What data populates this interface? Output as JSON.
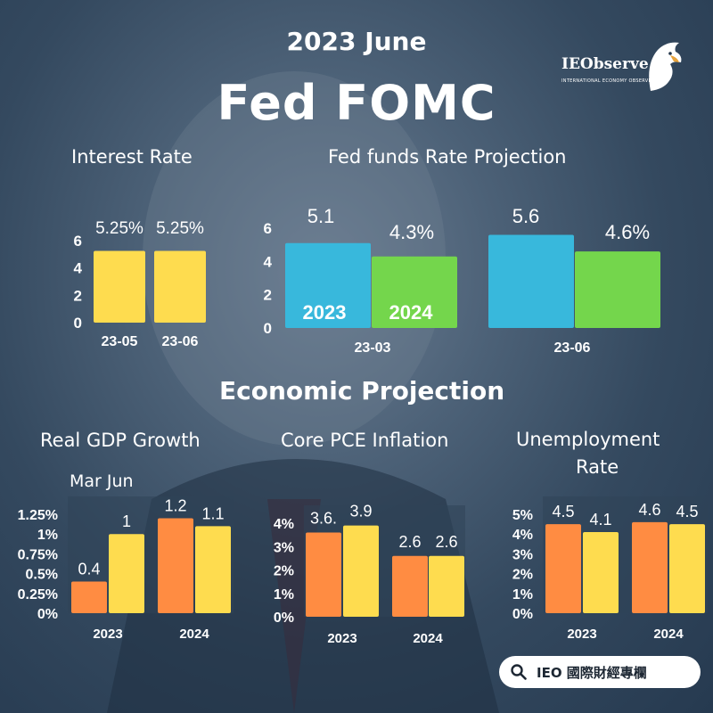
{
  "header": {
    "subtitle": "2023 June",
    "title": "Fed FOMC"
  },
  "logo": {
    "name": "IEObserve",
    "tagline": "INTERNATIONAL ECONOMY OBSERVE",
    "icon": "eagle-icon"
  },
  "sections": {
    "interest_rate": "Interest Rate",
    "fed_funds": "Fed funds Rate Projection",
    "economic": "Economic Projection",
    "gdp": "Real GDP Growth",
    "gdp_note": "Mar Jun",
    "pce": "Core PCE Inflation",
    "unemployment_line1": "Unemployment",
    "unemployment_line2": "Rate"
  },
  "colors": {
    "yellow": "#fedc4f",
    "orange": "#ff8c42",
    "blue": "#38b8dc",
    "green": "#74d64c",
    "text": "#ffffff",
    "panel": "#2f4358"
  },
  "chart_data": [
    {
      "id": "interest",
      "type": "bar",
      "title": "Interest Rate",
      "categories": [
        "23-05",
        "23-06"
      ],
      "values": [
        5.25,
        5.25
      ],
      "data_labels": [
        "5.25%",
        "5.25%"
      ],
      "yticks": [
        "0",
        "2",
        "4",
        "6"
      ],
      "ylim": [
        0,
        6
      ],
      "grid": false
    },
    {
      "id": "fedfunds",
      "type": "bar",
      "title": "Fed funds Rate Projection",
      "categories": [
        "23-03",
        "23-06"
      ],
      "series": [
        {
          "name": "2023",
          "values": [
            5.1,
            5.6
          ],
          "data_labels": [
            "5.1",
            "5.6"
          ]
        },
        {
          "name": "2024",
          "values": [
            4.3,
            4.6
          ],
          "data_labels": [
            "4.3%",
            "4.6%"
          ]
        }
      ],
      "yticks": [
        "0",
        "2",
        "4",
        "6"
      ],
      "ylim": [
        0,
        6
      ],
      "grid": false
    },
    {
      "id": "gdp",
      "type": "bar",
      "title": "Real GDP Growth",
      "categories": [
        "2023",
        "2024"
      ],
      "series": [
        {
          "name": "Mar",
          "values": [
            0.4,
            1.2
          ],
          "data_labels": [
            "0.4",
            "1.2"
          ]
        },
        {
          "name": "Jun",
          "values": [
            1.0,
            1.1
          ],
          "data_labels": [
            "1",
            "1.1"
          ]
        }
      ],
      "yticks": [
        "0%",
        "0.25%",
        "0.5%",
        "0.75%",
        "1%",
        "1.25%"
      ],
      "ylim": [
        0,
        1.25
      ],
      "grid": false
    },
    {
      "id": "pce",
      "type": "bar",
      "title": "Core PCE Inflation",
      "categories": [
        "2023",
        "2024"
      ],
      "series": [
        {
          "values": [
            3.6,
            2.6
          ],
          "data_labels": [
            "3.6.",
            "2.6"
          ]
        },
        {
          "values": [
            3.9,
            2.6
          ],
          "data_labels": [
            "3.9",
            "2.6"
          ]
        }
      ],
      "yticks": [
        "0%",
        "1%",
        "2%",
        "3%",
        "4%"
      ],
      "ylim": [
        0,
        4
      ],
      "grid": false
    },
    {
      "id": "unemp",
      "type": "bar",
      "title": "Unemployment Rate",
      "categories": [
        "2023",
        "2024"
      ],
      "series": [
        {
          "values": [
            4.5,
            4.6
          ],
          "data_labels": [
            "4.5",
            "4.6"
          ]
        },
        {
          "values": [
            4.1,
            4.5
          ],
          "data_labels": [
            "4.1",
            "4.5"
          ]
        }
      ],
      "yticks": [
        "0%",
        "1%",
        "2%",
        "3%",
        "4%",
        "5%"
      ],
      "ylim": [
        0,
        5
      ],
      "grid": false
    }
  ],
  "footer": {
    "search_icon": "search-icon",
    "search_label": "IEO 國際財經專欄"
  }
}
